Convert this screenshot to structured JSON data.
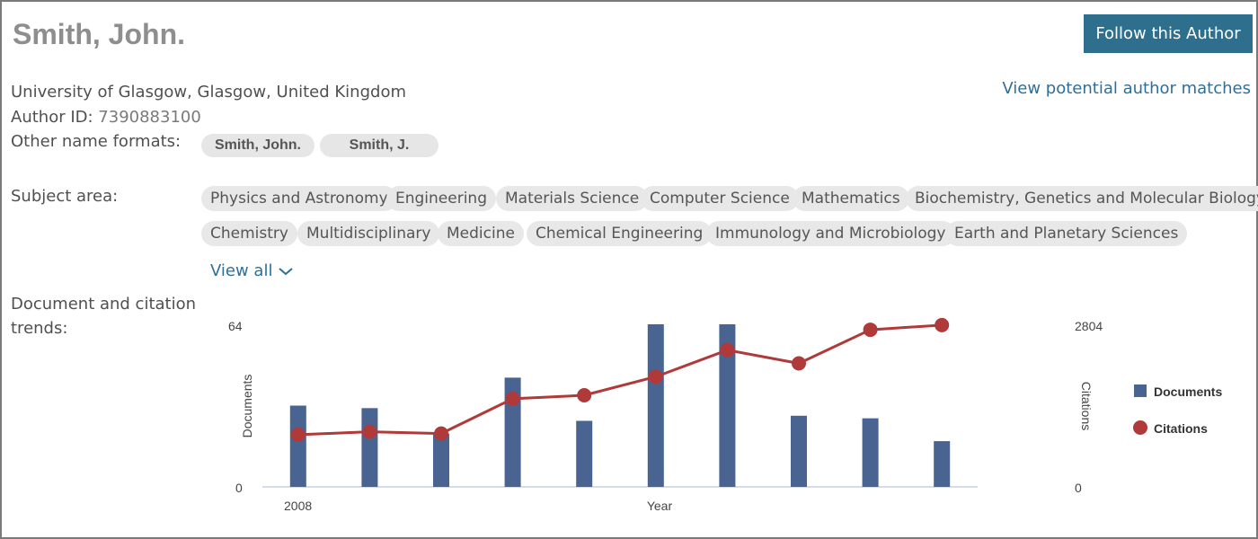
{
  "author": {
    "name": "Smith, John.",
    "affiliation": "University of Glasgow, Glasgow, United Kingdom",
    "author_id_label": "Author ID:",
    "author_id": "7390883100"
  },
  "actions": {
    "follow_label": "Follow this Author",
    "matches_label": "View potential author matches",
    "view_all_label": "View all"
  },
  "name_formats": {
    "label": "Other name formats:",
    "items": [
      "Smith, John.",
      "Smith, J."
    ]
  },
  "subject_area": {
    "label": "Subject area:",
    "items": [
      "Physics and Astronomy",
      "Engineering",
      "Materials Science",
      "Computer Science",
      "Mathematics",
      "Biochemistry, Genetics and Molecular Biology",
      "Chemistry",
      "Multidisciplinary",
      "Medicine",
      "Chemical Engineering",
      "Immunology and Microbiology",
      "Earth and Planetary Sciences"
    ]
  },
  "trends": {
    "label_line1": "Document and citation",
    "label_line2": "trends:"
  },
  "colors": {
    "documents": "#4a6491",
    "citations": "#b03a3a",
    "accent": "#2e6f8e"
  },
  "chart_data": {
    "type": "bar",
    "x_first_tick": "2008",
    "xlabel": "Year",
    "y_left": {
      "label": "Documents",
      "ylim": [
        0,
        64
      ],
      "tick_labels": [
        "0",
        "64"
      ]
    },
    "y_right": {
      "label": "Citations",
      "ylim": [
        0,
        2804
      ],
      "tick_labels": [
        "0",
        "2804"
      ]
    },
    "x_count": 10,
    "series": [
      {
        "name": "Documents",
        "kind": "bar",
        "axis": "left",
        "values": [
          32,
          31,
          21,
          43,
          26,
          64,
          64,
          28,
          27,
          18
        ]
      },
      {
        "name": "Citations",
        "kind": "line",
        "axis": "right",
        "values": [
          900,
          950,
          920,
          1520,
          1580,
          1900,
          2360,
          2130,
          2710,
          2790
        ]
      }
    ],
    "legend": {
      "position": "right",
      "entries": [
        "Documents",
        "Citations"
      ]
    },
    "grid": false
  }
}
